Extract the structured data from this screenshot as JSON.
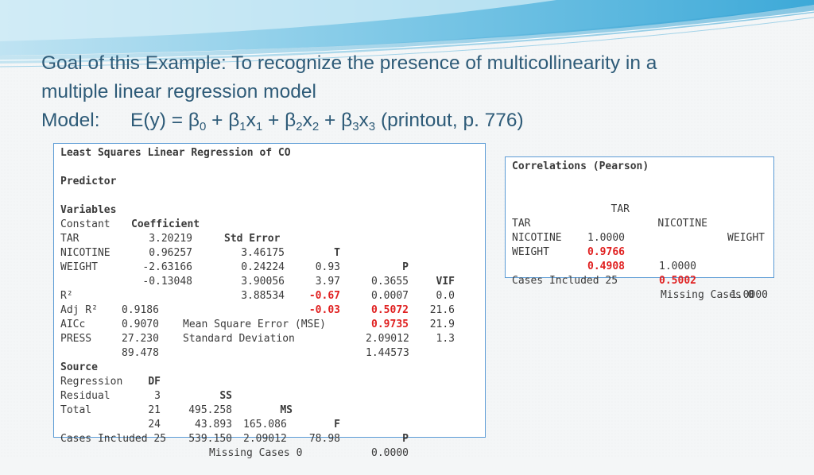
{
  "title": {
    "line1": "Goal of this Example: To recognize the presence of multicollinearity in a",
    "line2": "multiple linear regression model",
    "model_label": "Model:",
    "model_expr": "E(y) = β",
    "sub0": "0",
    "plus1": " + β",
    "sub1a": "1",
    "x1": "x",
    "sub1b": "1",
    "plus2": " + β",
    "sub2a": "2",
    "x2": "x",
    "sub2b": "2",
    "plus3": " + β",
    "sub3a": "3",
    "x3": "x",
    "sub3b": "3",
    "printout": "  (printout, p. 776)"
  },
  "regression": {
    "heading": "Least Squares Linear Regression of CO",
    "predictor_label": "Predictor",
    "headers": [
      "Variables",
      "Coefficient",
      "Std Error",
      "T",
      "P",
      "VIF"
    ],
    "rows": [
      {
        "name": "Constant",
        "coef": "3.20219",
        "se": "3.46175",
        "t": "0.93",
        "p": "0.3655",
        "vif": "0.0"
      },
      {
        "name": "TAR",
        "coef": "0.96257",
        "se": "0.24224",
        "t": "3.97",
        "p": "0.0007",
        "vif": "21.6"
      },
      {
        "name": "NICOTINE",
        "coef": "-2.63166",
        "se": "3.90056",
        "t": "-0.67",
        "p": "0.5072",
        "vif": "21.9"
      },
      {
        "name": "WEIGHT",
        "coef": "-0.13048",
        "se": "3.88534",
        "t": "-0.03",
        "p": "0.9735",
        "vif": "1.3"
      }
    ],
    "stats": [
      {
        "label": "R²",
        "value": "0.9186",
        "label2": "Mean Square Error (MSE)",
        "value2": "2.09012"
      },
      {
        "label": "Adj R²",
        "value": "0.9070",
        "label2": "Standard Deviation",
        "value2": "1.44573"
      },
      {
        "label": "AICc",
        "value": "27.230",
        "label2": "",
        "value2": ""
      },
      {
        "label": "PRESS",
        "value": "89.478",
        "label2": "",
        "value2": ""
      }
    ],
    "anova_headers": [
      "Source",
      "DF",
      "SS",
      "MS",
      "F",
      "P"
    ],
    "anova_rows": [
      {
        "source": "Regression",
        "df": "3",
        "ss": "495.258",
        "ms": "165.086",
        "f": "78.98",
        "p": "0.0000"
      },
      {
        "source": "Residual",
        "df": "21",
        "ss": "43.893",
        "ms": "2.09012",
        "f": "",
        "p": ""
      },
      {
        "source": "Total",
        "df": "24",
        "ss": "539.150",
        "ms": "",
        "f": "",
        "p": ""
      }
    ],
    "cases_included": "Cases Included 25",
    "missing_cases": "Missing Cases 0"
  },
  "correlations": {
    "heading": "Correlations (Pearson)",
    "headers": [
      "TAR",
      "NICOTINE",
      "WEIGHT"
    ],
    "rows": [
      {
        "name": "TAR",
        "v1": "1.0000",
        "v2": "",
        "v3": ""
      },
      {
        "name": "NICOTINE",
        "v1": "0.9766",
        "v2": "1.0000",
        "v3": ""
      },
      {
        "name": "WEIGHT",
        "v1": "0.4908",
        "v2": "0.5002",
        "v3": "1.0000"
      }
    ],
    "cases_included": "Cases Included 25",
    "missing_cases": "Missing Cases 0"
  },
  "colors": {
    "title": "#2e5b78",
    "highlight": "#e02020",
    "panel_border": "#5b9bd5"
  }
}
